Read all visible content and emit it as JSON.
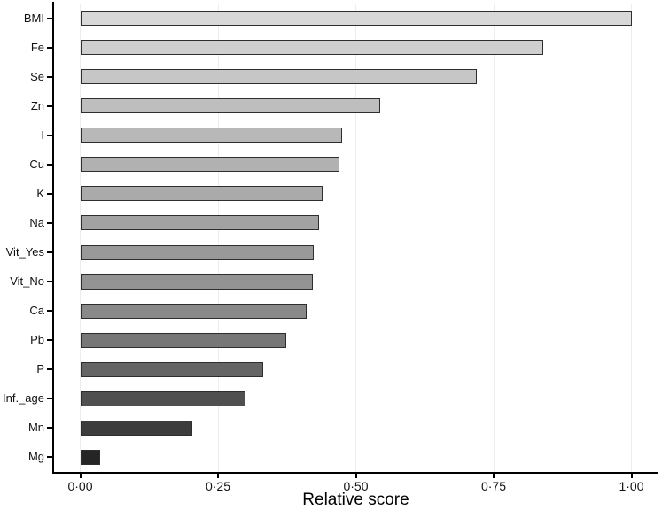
{
  "chart_data": {
    "type": "bar",
    "orientation": "horizontal",
    "title": "",
    "xlabel": "Relative score",
    "ylabel": "",
    "categories": [
      "BMI",
      "Fe",
      "Se",
      "Zn",
      "I",
      "Cu",
      "K",
      "Na",
      "Vit_Yes",
      "Vit_No",
      "Ca",
      "Pb",
      "P",
      "Inf._age",
      "Mn",
      "Mg"
    ],
    "values": [
      1.0,
      0.84,
      0.72,
      0.545,
      0.475,
      0.47,
      0.44,
      0.434,
      0.424,
      0.422,
      0.41,
      0.373,
      0.332,
      0.3,
      0.203,
      0.036
    ],
    "bar_colors": [
      "#d8d8d8",
      "#cfcfcf",
      "#c6c6c6",
      "#bebebe",
      "#b8b8b8",
      "#b1b1b1",
      "#aaaaaa",
      "#a2a2a2",
      "#999999",
      "#939393",
      "#898989",
      "#777777",
      "#656565",
      "#505050",
      "#3c3c3c",
      "#252525"
    ],
    "bar_border_color": "#2e2e2e",
    "xlim": [
      0,
      1.0
    ],
    "x_ticks": [
      0,
      0.25,
      0.5,
      0.75,
      1.0
    ],
    "x_tick_labels": [
      "0·00",
      "0·25",
      "0·50",
      "0·75",
      "1·00"
    ],
    "grid": "major-vertical-only",
    "gridline_color": "#ededed",
    "axis_color": "#000000",
    "legend": "none"
  }
}
